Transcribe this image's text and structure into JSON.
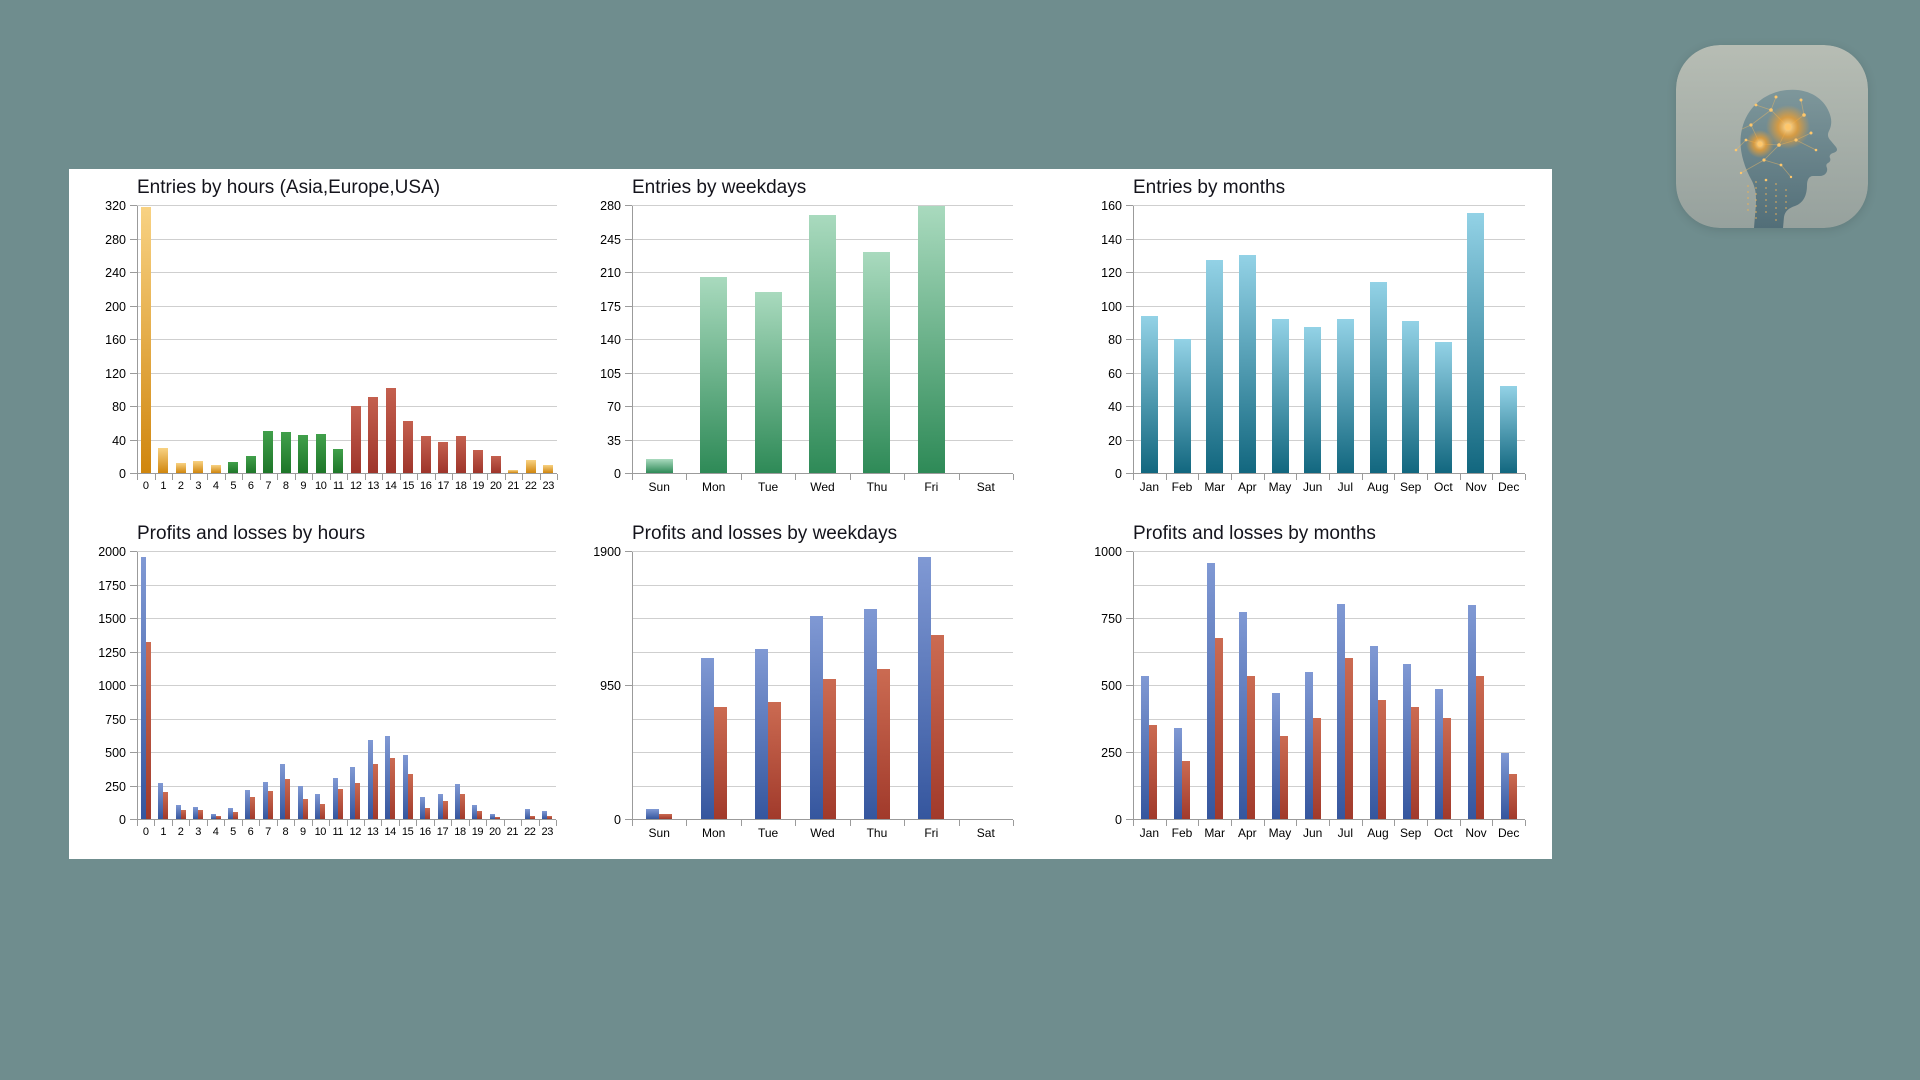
{
  "page": {
    "background": "#6F8D8E",
    "panel_background": "#FFFFFF"
  },
  "colors": {
    "gridline": "#CFCFCF",
    "axis": "#9B9B9B",
    "text": "#000000",
    "title": "#14141C"
  },
  "palette": {
    "orange": {
      "top": "#F8D283",
      "bottom": "#D0860E"
    },
    "green": {
      "top": "#41A04B",
      "bottom": "#1E7629"
    },
    "brick": {
      "top": "#C4604F",
      "bottom": "#9E352B"
    },
    "weekgreen": {
      "top": "#A9DABE",
      "bottom": "#2E8A57"
    },
    "teal": {
      "top": "#93D2E6",
      "bottom": "#12677F"
    },
    "blue": {
      "top": "#8099D4",
      "bottom": "#35569E"
    },
    "loss": {
      "top": "#CB6B52",
      "bottom": "#A13A2B"
    }
  },
  "app_icon": {
    "description": "ai-brain-head-profile"
  },
  "chart_data": [
    {
      "type": "bar",
      "title": "Entries by hours (Asia,Europe,USA)",
      "categories": [
        "0",
        "1",
        "2",
        "3",
        "4",
        "5",
        "6",
        "7",
        "8",
        "9",
        "10",
        "11",
        "12",
        "13",
        "14",
        "15",
        "16",
        "17",
        "18",
        "19",
        "20",
        "21",
        "22",
        "23"
      ],
      "series": [
        {
          "name": "entries",
          "values": [
            318,
            30,
            12,
            14,
            10,
            13,
            20,
            50,
            49,
            45,
            46,
            29,
            80,
            91,
            102,
            62,
            44,
            37,
            44,
            28,
            20,
            3,
            16,
            9
          ],
          "colors": [
            "orange",
            "orange",
            "orange",
            "orange",
            "orange",
            "green",
            "green",
            "green",
            "green",
            "green",
            "green",
            "green",
            "brick",
            "brick",
            "brick",
            "brick",
            "brick",
            "brick",
            "brick",
            "brick",
            "brick",
            "orange",
            "orange",
            "orange"
          ]
        }
      ],
      "xlabel": "",
      "ylabel": "",
      "ylim": [
        0,
        320
      ],
      "grid_step": 40,
      "label_step": 40,
      "grid": true,
      "legend": "none"
    },
    {
      "type": "bar",
      "title": "Entries by weekdays",
      "categories": [
        "Sun",
        "Mon",
        "Tue",
        "Wed",
        "Thu",
        "Fri",
        "Sat"
      ],
      "series": [
        {
          "name": "entries",
          "color": "weekgreen",
          "values": [
            15,
            205,
            189,
            270,
            231,
            279,
            0
          ]
        }
      ],
      "xlabel": "",
      "ylabel": "",
      "ylim": [
        0,
        280
      ],
      "grid_step": 35,
      "label_step": 35,
      "grid": true,
      "legend": "none"
    },
    {
      "type": "bar",
      "title": "Entries by months",
      "categories": [
        "Jan",
        "Feb",
        "Mar",
        "Apr",
        "May",
        "Jun",
        "Jul",
        "Aug",
        "Sep",
        "Oct",
        "Nov",
        "Dec"
      ],
      "series": [
        {
          "name": "entries",
          "color": "teal",
          "values": [
            94,
            80,
            127,
            130,
            92,
            87,
            92,
            114,
            91,
            78,
            155,
            52
          ]
        }
      ],
      "xlabel": "",
      "ylabel": "",
      "ylim": [
        0,
        160
      ],
      "grid_step": 20,
      "label_step": 20,
      "grid": true,
      "legend": "none"
    },
    {
      "type": "bar",
      "title": "Profits and losses by hours",
      "categories": [
        "0",
        "1",
        "2",
        "3",
        "4",
        "5",
        "6",
        "7",
        "8",
        "9",
        "10",
        "11",
        "12",
        "13",
        "14",
        "15",
        "16",
        "17",
        "18",
        "19",
        "20",
        "21",
        "22",
        "23"
      ],
      "series": [
        {
          "name": "profit",
          "color": "blue",
          "values": [
            1955,
            270,
            105,
            90,
            35,
            80,
            220,
            275,
            410,
            245,
            190,
            305,
            390,
            590,
            620,
            478,
            161,
            190,
            260,
            104,
            37,
            0,
            74,
            57
          ]
        },
        {
          "name": "loss",
          "color": "loss",
          "values": [
            1320,
            205,
            70,
            65,
            20,
            50,
            165,
            210,
            295,
            150,
            115,
            225,
            270,
            410,
            458,
            339,
            82,
            131,
            186,
            62,
            17,
            0,
            22,
            25
          ]
        }
      ],
      "xlabel": "",
      "ylabel": "",
      "ylim": [
        0,
        2000
      ],
      "grid_step": 250,
      "label_step": 250,
      "grid": true,
      "legend": "none"
    },
    {
      "type": "bar",
      "title": "Profits and losses by weekdays",
      "categories": [
        "Sun",
        "Mon",
        "Tue",
        "Wed",
        "Thu",
        "Fri",
        "Sat"
      ],
      "series": [
        {
          "name": "profit",
          "color": "blue",
          "values": [
            70,
            1142,
            1203,
            1437,
            1486,
            1858,
            0
          ]
        },
        {
          "name": "loss",
          "color": "loss",
          "values": [
            35,
            791,
            826,
            994,
            1064,
            1301,
            0
          ]
        }
      ],
      "xlabel": "",
      "ylabel": "",
      "ylim": [
        0,
        1900
      ],
      "grid_step": 237.5,
      "label_step": 950,
      "grid": true,
      "legend": "none"
    },
    {
      "type": "bar",
      "title": "Profits and losses by months",
      "categories": [
        "Jan",
        "Feb",
        "Mar",
        "Apr",
        "May",
        "Jun",
        "Jul",
        "Aug",
        "Sep",
        "Oct",
        "Nov",
        "Dec"
      ],
      "series": [
        {
          "name": "profit",
          "color": "blue",
          "values": [
            535,
            340,
            957,
            773,
            469,
            548,
            801,
            644,
            577,
            485,
            798,
            245
          ]
        },
        {
          "name": "loss",
          "color": "loss",
          "values": [
            352,
            217,
            675,
            534,
            309,
            378,
            599,
            444,
            417,
            377,
            534,
            168
          ]
        }
      ],
      "xlabel": "",
      "ylabel": "",
      "ylim": [
        0,
        1000
      ],
      "grid_step": 125,
      "label_step": 250,
      "grid": true,
      "legend": "none"
    }
  ]
}
